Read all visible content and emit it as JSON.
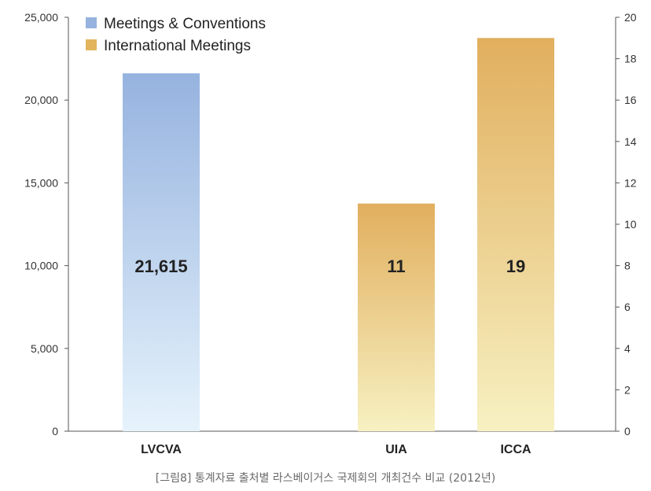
{
  "chart_data": {
    "type": "bar",
    "categories": [
      "LVCVA",
      "UIA",
      "ICCA"
    ],
    "series": [
      {
        "name": "Meetings & Conventions",
        "axis": "left",
        "values": [
          21615,
          null,
          null
        ],
        "labels": [
          "21,615",
          "",
          ""
        ]
      },
      {
        "name": "International Meetings",
        "axis": "right",
        "values": [
          null,
          11,
          19
        ],
        "labels": [
          "",
          "11",
          "19"
        ]
      }
    ],
    "left_axis": {
      "ylim": [
        0,
        25000
      ],
      "ticks": [
        0,
        5000,
        10000,
        15000,
        20000,
        25000
      ],
      "tick_labels": [
        "0",
        "5,000",
        "10,000",
        "15,000",
        "20,000",
        "25,000"
      ]
    },
    "right_axis": {
      "ylim": [
        0,
        20
      ],
      "ticks": [
        0,
        2,
        4,
        6,
        8,
        10,
        12,
        14,
        16,
        18,
        20
      ],
      "tick_labels": [
        "0",
        "2",
        "4",
        "6",
        "8",
        "10",
        "12",
        "14",
        "16",
        "18",
        "20"
      ]
    },
    "legend_position": "top-left",
    "grid": false,
    "colors": {
      "blue_top": "#96b3df",
      "blue_bottom": "#e6f3fc",
      "gold_top": "#e1af5e",
      "gold_bottom": "#f7f1c2",
      "legend_blue": "#96b3df",
      "legend_gold": "#e2b45e"
    }
  },
  "caption": "[그림8] 통계자료 출처별 라스베이거스 국제회의 개최건수 비교 (2012년)"
}
